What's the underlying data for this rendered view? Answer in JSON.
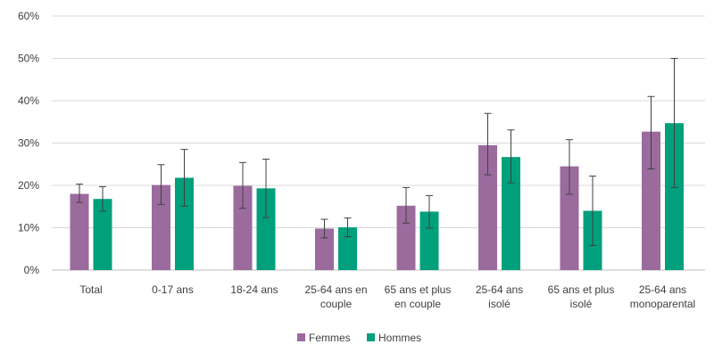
{
  "chart_data": {
    "type": "bar",
    "categories": [
      [
        "Total"
      ],
      [
        "0-17 ans"
      ],
      [
        "18-24 ans"
      ],
      [
        "25-64 ans en",
        "couple"
      ],
      [
        "65 ans et plus",
        "en couple"
      ],
      [
        "25-64 ans",
        "isolé"
      ],
      [
        "65 ans et plus",
        "isolé"
      ],
      [
        "25-64 ans",
        "monoparental"
      ]
    ],
    "series": [
      {
        "name": "Femmes",
        "color": "#9b6b9e",
        "values": [
          18.0,
          20.1,
          19.9,
          9.8,
          15.2,
          29.5,
          24.5,
          32.7
        ],
        "error_low": [
          16.0,
          15.5,
          14.6,
          7.6,
          11.1,
          22.5,
          17.9,
          23.9
        ],
        "error_high": [
          20.3,
          24.9,
          25.4,
          12.0,
          19.5,
          37.0,
          30.8,
          41.0
        ]
      },
      {
        "name": "Hommes",
        "color": "#00a07c",
        "values": [
          16.8,
          21.8,
          19.3,
          10.1,
          13.8,
          26.7,
          14.0,
          34.7
        ],
        "error_low": [
          13.9,
          15.1,
          12.4,
          7.9,
          9.9,
          20.6,
          5.8,
          19.5
        ],
        "error_high": [
          19.7,
          28.5,
          26.2,
          12.3,
          17.6,
          33.1,
          22.2,
          50.0
        ]
      }
    ],
    "ylim": [
      0,
      60
    ],
    "yticks": [
      0,
      10,
      20,
      30,
      40,
      50,
      60
    ],
    "ytick_format": "{v}%",
    "grid": true,
    "legend": "bottom-center",
    "gridColor": "#d9d9d9",
    "axisColor": "#bfbfbf",
    "errorColor": "#404040"
  }
}
